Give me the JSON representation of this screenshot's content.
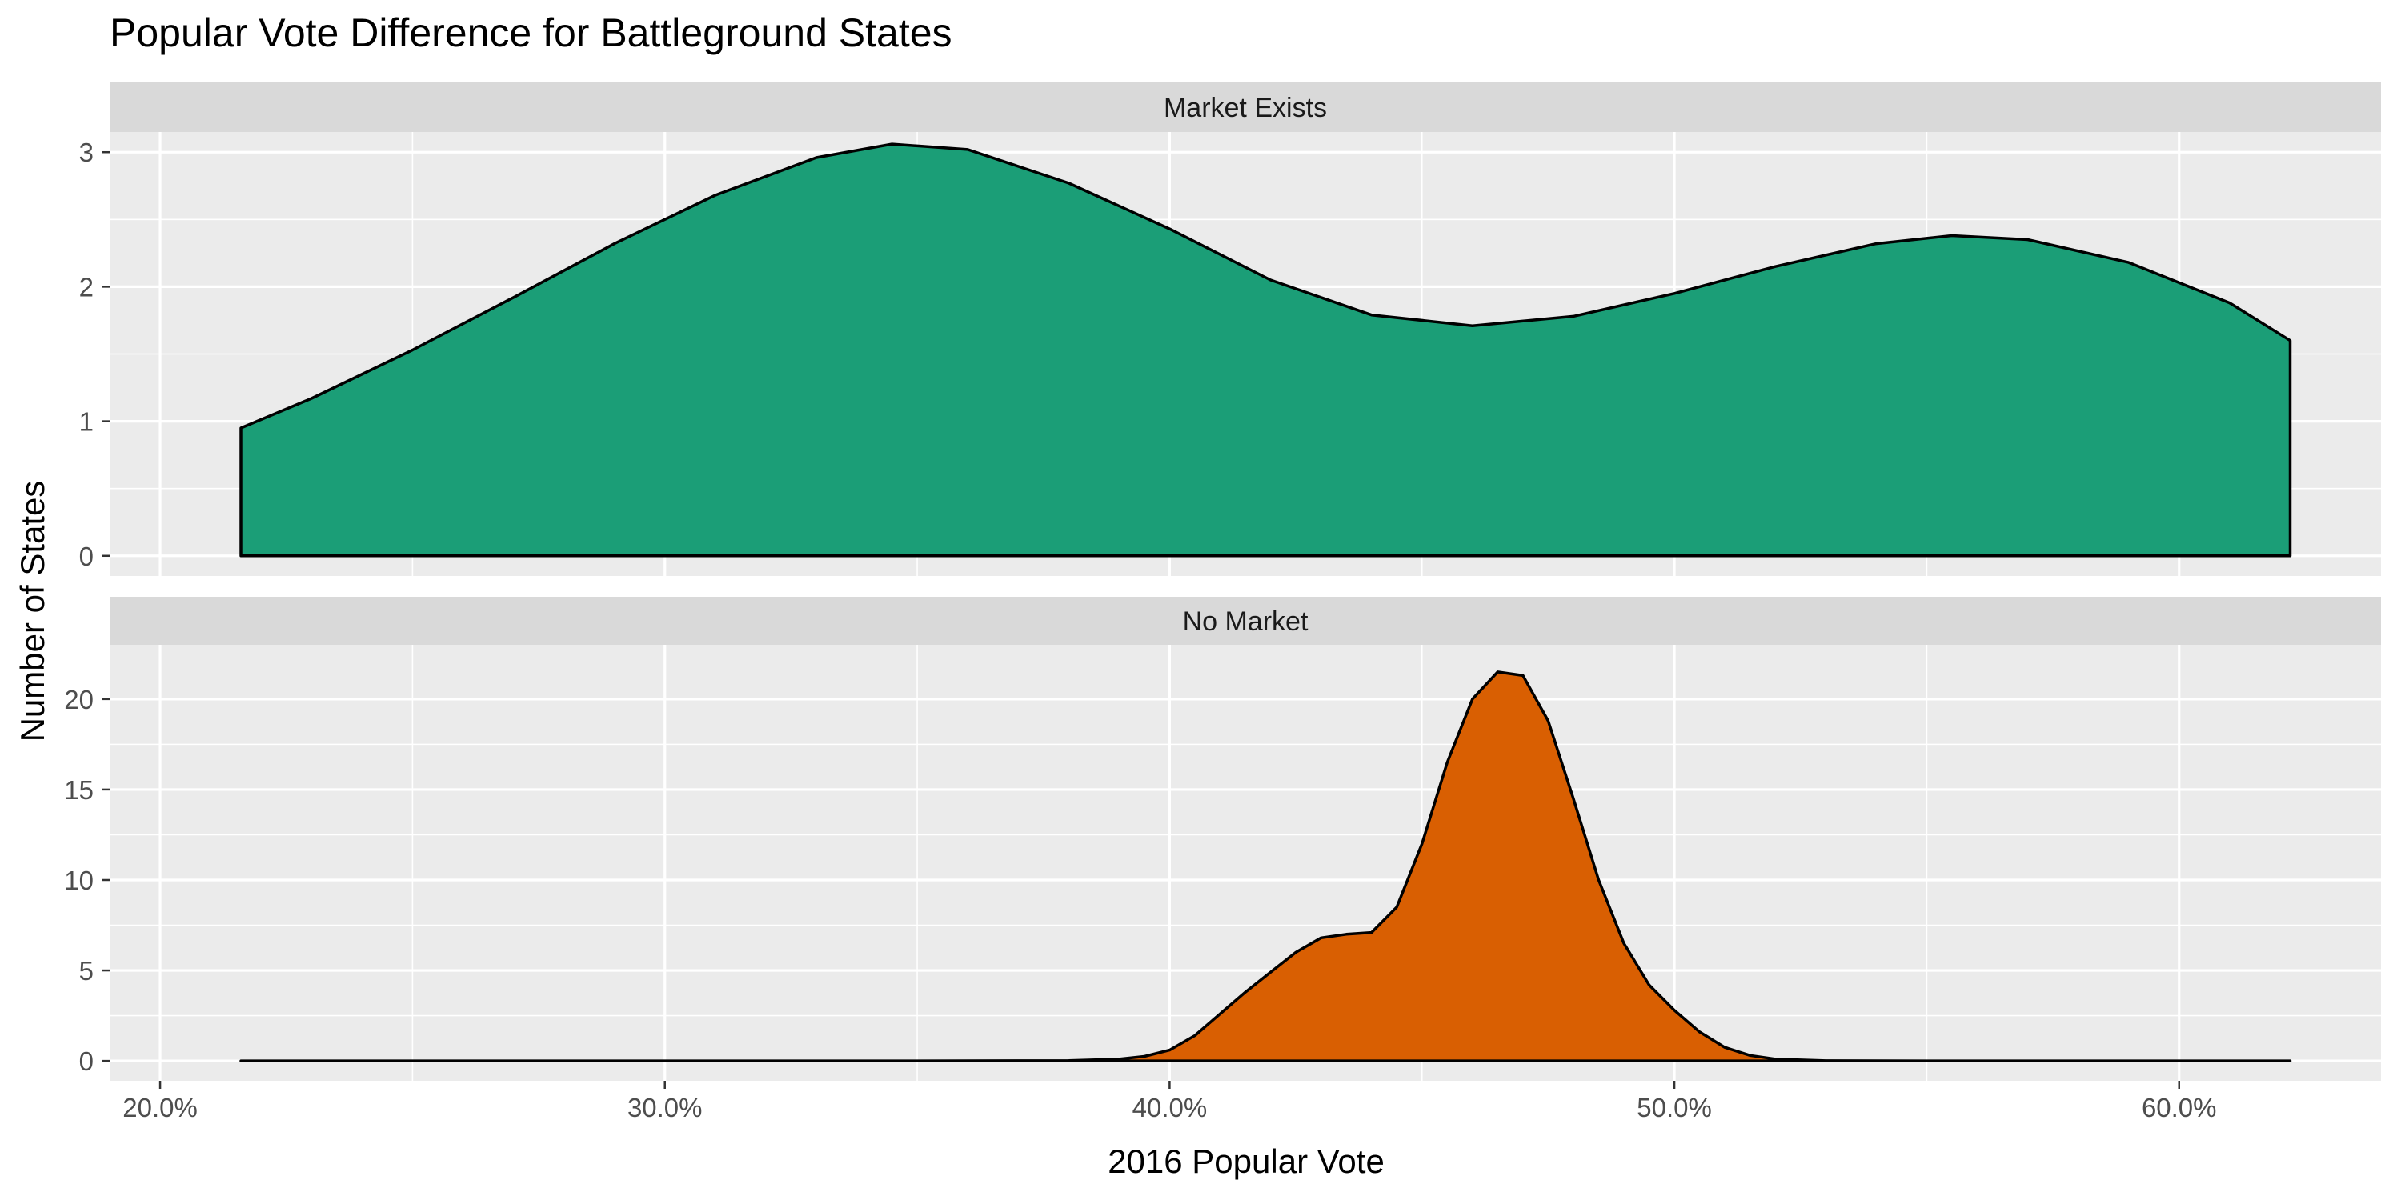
{
  "chart_data": {
    "type": "area",
    "title": "Popular Vote Difference for Battleground States",
    "xlabel": "2016 Popular Vote",
    "ylabel": "Number of States",
    "xlim": [
      0.19,
      0.64
    ],
    "x_ticks": [
      0.2,
      0.3,
      0.4,
      0.5,
      0.6
    ],
    "x_tick_labels": [
      "20.0%",
      "30.0%",
      "40.0%",
      "50.0%",
      "60.0%"
    ],
    "grid": true,
    "panels": [
      {
        "label": "Market Exists",
        "fill_color": "#1b9e77",
        "ylim": [
          -0.15,
          3.15
        ],
        "y_ticks": [
          0,
          1,
          2,
          3
        ],
        "y_tick_labels": [
          "0",
          "1",
          "2",
          "3"
        ],
        "x": [
          0.216,
          0.23,
          0.25,
          0.27,
          0.29,
          0.31,
          0.33,
          0.345,
          0.36,
          0.38,
          0.4,
          0.42,
          0.44,
          0.46,
          0.48,
          0.5,
          0.52,
          0.54,
          0.555,
          0.57,
          0.59,
          0.61,
          0.622
        ],
        "y": [
          0.95,
          1.17,
          1.53,
          1.92,
          2.32,
          2.68,
          2.96,
          3.06,
          3.02,
          2.77,
          2.43,
          2.05,
          1.79,
          1.71,
          1.78,
          1.95,
          2.15,
          2.32,
          2.38,
          2.35,
          2.18,
          1.88,
          1.6
        ]
      },
      {
        "label": "No Market",
        "fill_color": "#d95f02",
        "ylim": [
          -1.1,
          23.0
        ],
        "y_ticks": [
          0,
          5,
          10,
          15,
          20
        ],
        "y_tick_labels": [
          "0",
          "5",
          "10",
          "15",
          "20"
        ],
        "x": [
          0.216,
          0.35,
          0.38,
          0.39,
          0.395,
          0.4,
          0.405,
          0.41,
          0.415,
          0.42,
          0.425,
          0.43,
          0.435,
          0.44,
          0.445,
          0.45,
          0.455,
          0.46,
          0.465,
          0.47,
          0.475,
          0.48,
          0.485,
          0.49,
          0.495,
          0.5,
          0.505,
          0.51,
          0.515,
          0.52,
          0.53,
          0.55,
          0.622
        ],
        "y": [
          0,
          0,
          0.02,
          0.1,
          0.25,
          0.6,
          1.4,
          2.6,
          3.8,
          4.9,
          6.0,
          6.8,
          7.0,
          7.1,
          8.5,
          12.0,
          16.5,
          20.0,
          21.5,
          21.3,
          18.8,
          14.5,
          10.0,
          6.5,
          4.2,
          2.8,
          1.6,
          0.75,
          0.3,
          0.1,
          0.01,
          0,
          0
        ]
      }
    ]
  }
}
